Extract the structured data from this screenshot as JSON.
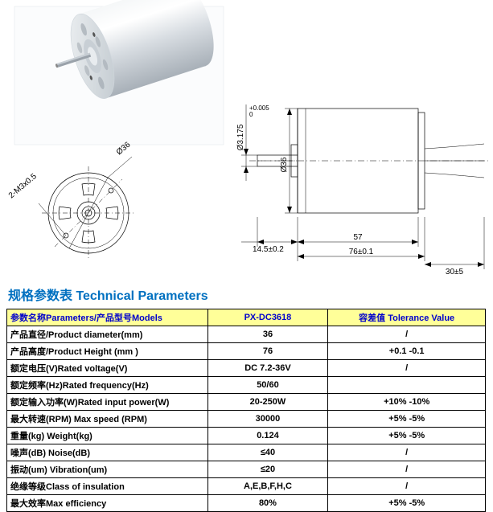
{
  "title": "规格参数表  Technical Parameters",
  "headers": {
    "param": "参数名称Parameters/产品型号Models",
    "model": "PX-DC3618",
    "tol": "容差值 Tolerance Value"
  },
  "rows": [
    {
      "label": "产品直径/Product diameter(mm)",
      "value": "36",
      "tol": "/"
    },
    {
      "label": "产品高度/Product Height (mm )",
      "value": "76",
      "tol": "+0.1 -0.1"
    },
    {
      "label": "额定电压(V)Rated voltage(V)",
      "value": "DC 7.2-36V",
      "tol": "/"
    },
    {
      "label": "额定频率(Hz)Rated frequency(Hz)",
      "value": "50/60",
      "tol": ""
    },
    {
      "label": "额定输入功率(W)Rated input power(W)",
      "value": "20-250W",
      "tol": "+10% -10%"
    },
    {
      "label": "最大转速(RPM) Max speed (RPM)",
      "value": "30000",
      "tol": "+5% -5%"
    },
    {
      "label": "重量(kg) Weight(kg)",
      "value": "0.124",
      "tol": "+5% -5%"
    },
    {
      "label": "噪声(dB) Noise(dB)",
      "value": "≤40",
      "tol": "/"
    },
    {
      "label": "振动(um) Vibration(um)",
      "value": "≤20",
      "tol": "/"
    },
    {
      "label": "绝缘等级Class of insulation",
      "value": "A,E,B,F,H,C",
      "tol": "/"
    },
    {
      "label": "最大效率Max efficiency",
      "value": "80%",
      "tol": "+5% -5%"
    }
  ],
  "drawing": {
    "dims": {
      "d36": "Ø36",
      "screw": "2-M3x0.5",
      "shaft_d": "Ø3.175",
      "shaft_tol": "+0.005\n0",
      "shaft_len": "14.5±0.2",
      "body_len": "57",
      "total_len": "76±0.1",
      "wire_len": "30±5"
    },
    "colors": {
      "render_body": "#e8ecef",
      "render_body_light": "#f5f7f8",
      "render_body_dark": "#b8c0c6",
      "render_face": "#d8dde2",
      "render_shaft": "#9aa2aa",
      "render_bg": "#cfd6dc",
      "line": "#000000"
    }
  }
}
